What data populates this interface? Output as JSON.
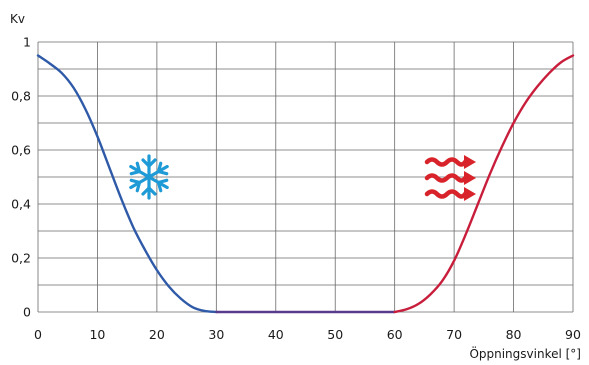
{
  "chart_data": {
    "type": "line",
    "title": "",
    "xlabel": "Öppningsvinkel [°]",
    "ylabel": "Kv",
    "xlim": [
      0,
      90
    ],
    "ylim": [
      0,
      1
    ],
    "grid": true,
    "x_ticks": [
      "0",
      "10",
      "20",
      "30",
      "40",
      "50",
      "60",
      "70",
      "80",
      "90"
    ],
    "y_ticks": [
      "0",
      "0,2",
      "0,4",
      "0,6",
      "0,8",
      "1"
    ],
    "series": [
      {
        "color": "#2f5aa8",
        "x": [
          0,
          2,
          4,
          6,
          8,
          10,
          12,
          14,
          16,
          18,
          20,
          22,
          24,
          26,
          28,
          30
        ],
        "y": [
          0.95,
          0.92,
          0.885,
          0.83,
          0.75,
          0.65,
          0.535,
          0.42,
          0.315,
          0.23,
          0.155,
          0.095,
          0.05,
          0.018,
          0.004,
          0.0
        ]
      },
      {
        "color": "#5a3a8a",
        "x": [
          30,
          35,
          40,
          45,
          50,
          55,
          60
        ],
        "y": [
          0.0,
          0.0,
          0.0,
          0.0,
          0.0,
          0.0,
          0.0
        ]
      },
      {
        "color": "#c81e3c",
        "x": [
          60,
          62,
          64,
          66,
          68,
          70,
          72,
          74,
          76,
          78,
          80,
          82,
          84,
          86,
          88,
          90
        ],
        "y": [
          0.0,
          0.01,
          0.03,
          0.065,
          0.115,
          0.19,
          0.29,
          0.4,
          0.51,
          0.61,
          0.7,
          0.775,
          0.835,
          0.885,
          0.925,
          0.95
        ]
      }
    ],
    "icons": [
      {
        "name": "snowflake-icon",
        "color": "#1e9ad6"
      },
      {
        "name": "heat-waves-icon",
        "color": "#d8232a"
      }
    ]
  }
}
